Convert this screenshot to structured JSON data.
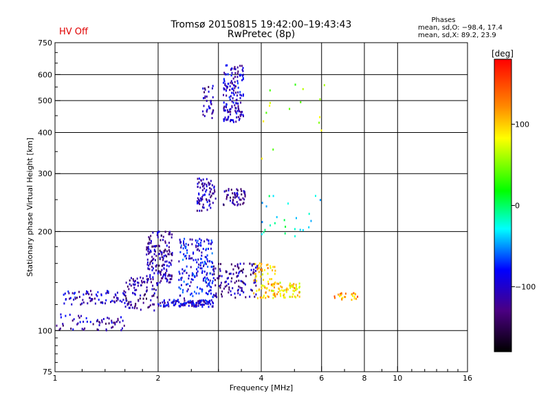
{
  "header": {
    "status": "HV Off",
    "status_color": "#e00000",
    "title": "Tromsø 20150815 19:42:00–19:43:43",
    "subtitle": "RwPretec (8p)",
    "phase_box": {
      "title": "Phases",
      "line_o": "mean, sd,O: −98.4, 17.4",
      "line_x": "mean, sd,X:  89.2, 23.9"
    }
  },
  "chart_data": {
    "type": "scatter",
    "xlabel": "Frequency [MHz]",
    "ylabel": "Stationary phase Virtual Height [km]",
    "xscale": "log",
    "yscale": "log",
    "xlim": [
      1,
      16
    ],
    "ylim": [
      75,
      750
    ],
    "xticks": [
      1,
      2,
      4,
      6,
      8,
      10,
      16
    ],
    "yticks": [
      75,
      100,
      200,
      300,
      400,
      500,
      600,
      750
    ],
    "xtick_labels": [
      "1",
      "2",
      "4",
      "6",
      "8",
      "10",
      "16"
    ],
    "ytick_labels": [
      "75",
      "100",
      "200",
      "300",
      "400",
      "500",
      "600",
      "750"
    ],
    "x_gridlines": [
      2,
      3,
      4,
      6,
      8,
      10
    ],
    "y_gridlines": [
      100,
      200,
      300,
      400,
      500,
      600
    ],
    "grid": true,
    "colorbar": {
      "label": "[deg]",
      "range": [
        -180,
        180
      ],
      "ticks": [
        100,
        0,
        -100
      ],
      "tick_labels": [
        "100",
        "0",
        "−100"
      ],
      "colors": [
        "#ff0000",
        "#ff8800",
        "#ffff00",
        "#00ff00",
        "#00ffff",
        "#0000ff",
        "#4b0082",
        "#000000"
      ]
    },
    "clusters": [
      {
        "x": [
          1.0,
          1.6
        ],
        "y": [
          100,
          112
        ],
        "phase": -110,
        "n": 60
      },
      {
        "x": [
          1.05,
          1.65
        ],
        "y": [
          120,
          132
        ],
        "phase": -105,
        "n": 80
      },
      {
        "x": [
          1.6,
          2.0
        ],
        "y": [
          115,
          145
        ],
        "phase": -120,
        "n": 90
      },
      {
        "x": [
          1.85,
          2.2
        ],
        "y": [
          140,
          200
        ],
        "phase": -115,
        "n": 170
      },
      {
        "x": [
          2.0,
          2.9
        ],
        "y": [
          118,
          124
        ],
        "phase": -100,
        "n": 120
      },
      {
        "x": [
          2.3,
          2.9
        ],
        "y": [
          125,
          190
        ],
        "phase": -85,
        "n": 190
      },
      {
        "x": [
          2.6,
          2.95
        ],
        "y": [
          230,
          290
        ],
        "phase": -110,
        "n": 80
      },
      {
        "x": [
          3.1,
          3.6
        ],
        "y": [
          240,
          270
        ],
        "phase": -120,
        "n": 55
      },
      {
        "x": [
          2.9,
          3.9
        ],
        "y": [
          125,
          160
        ],
        "phase": -115,
        "n": 120
      },
      {
        "x": [
          2.7,
          2.9
        ],
        "y": [
          440,
          560
        ],
        "phase": -110,
        "n": 35
      },
      {
        "x": [
          3.1,
          3.55
        ],
        "y": [
          430,
          640
        ],
        "phase": -100,
        "n": 160
      },
      {
        "x": [
          3.8,
          4.4
        ],
        "y": [
          125,
          160
        ],
        "phase": 100,
        "n": 70
      },
      {
        "x": [
          4.3,
          5.2
        ],
        "y": [
          126,
          140
        ],
        "phase": 95,
        "n": 70
      },
      {
        "x": [
          6.5,
          7.7
        ],
        "y": [
          124,
          130
        ],
        "phase": 120,
        "n": 25
      },
      {
        "x": [
          4.0,
          6.0
        ],
        "y": [
          190,
          260
        ],
        "phase": -20,
        "n": 25
      },
      {
        "x": [
          4.0,
          6.2
        ],
        "y": [
          300,
          560
        ],
        "phase": 60,
        "n": 16
      }
    ]
  }
}
